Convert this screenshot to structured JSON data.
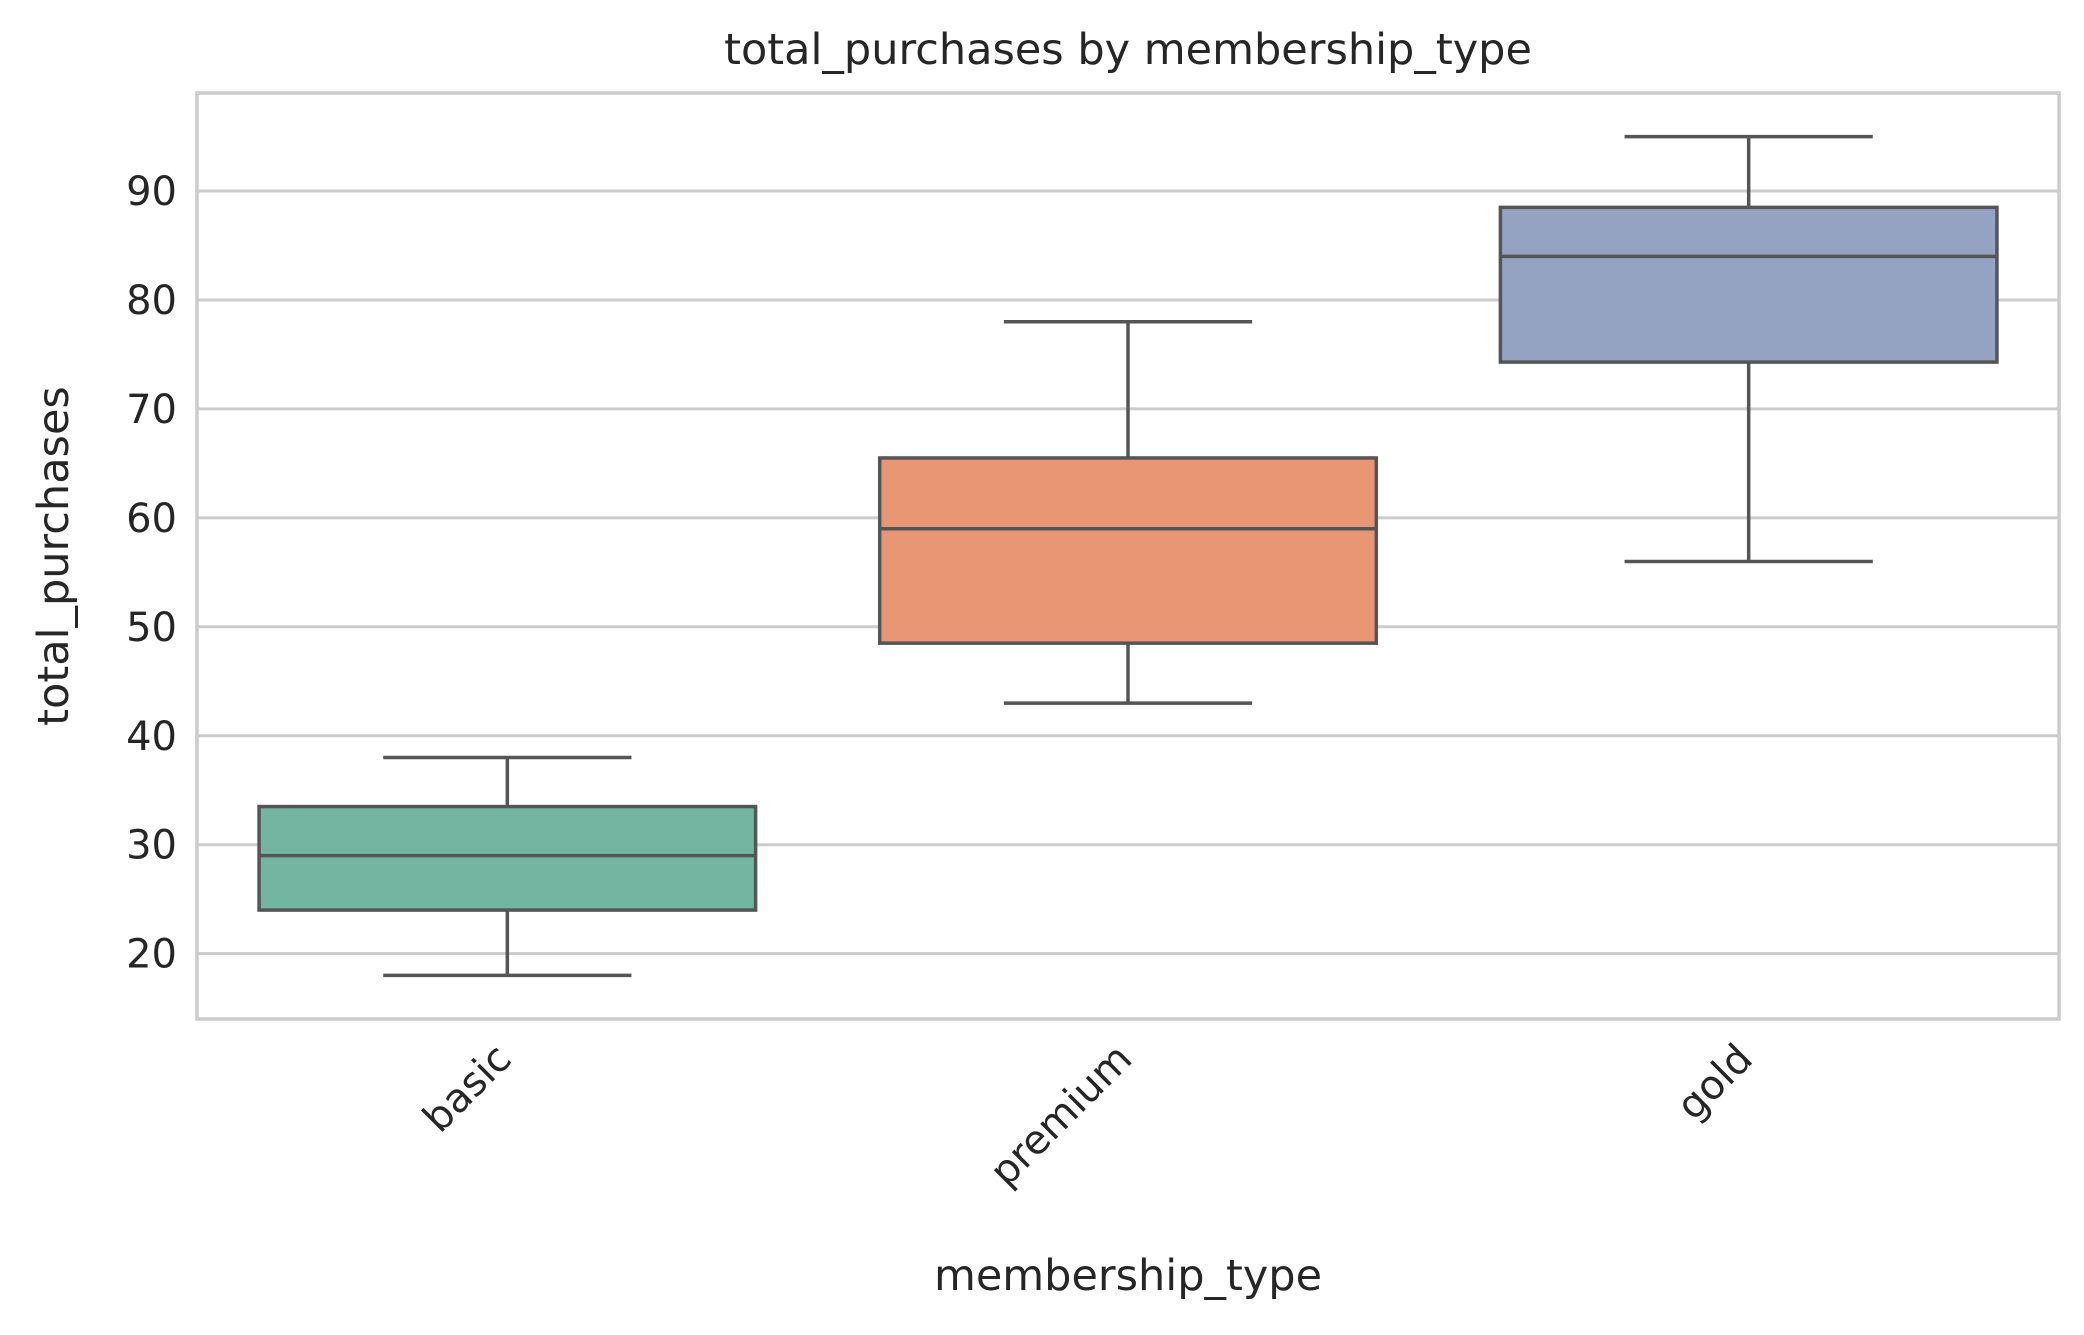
{
  "chart_data": {
    "type": "box",
    "title": "total_purchases by membership_type",
    "xlabel": "membership_type",
    "ylabel": "total_purchases",
    "ylim": [
      14,
      99
    ],
    "yticks": [
      20,
      30,
      40,
      50,
      60,
      70,
      80,
      90
    ],
    "grid": true,
    "categories": [
      "basic",
      "premium",
      "gold"
    ],
    "boxes": [
      {
        "category": "basic",
        "whisker_low": 18,
        "q1": 24,
        "median": 29,
        "q3": 33.5,
        "whisker_high": 38,
        "color": "#72b6a1"
      },
      {
        "category": "premium",
        "whisker_low": 43,
        "q1": 48.5,
        "median": 59,
        "q3": 65.5,
        "whisker_high": 78,
        "color": "#e99675"
      },
      {
        "category": "gold",
        "whisker_low": 56,
        "q1": 74.3,
        "median": 84,
        "q3": 88.5,
        "whisker_high": 95,
        "color": "#95a3c3"
      }
    ]
  }
}
